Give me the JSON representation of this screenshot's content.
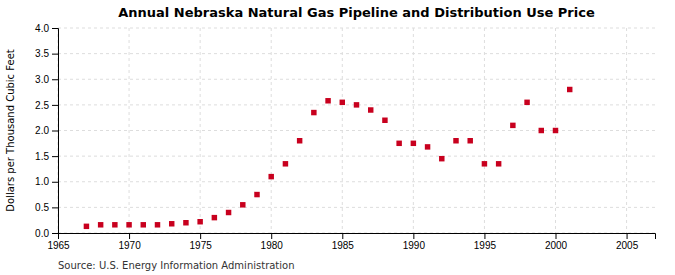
{
  "chart_data": {
    "type": "scatter",
    "title": "Annual Nebraska Natural Gas Pipeline and Distribution Use Price",
    "ylabel": "Dollars per Thousand Cubic Feet",
    "annotations": [
      "Source: U.S. Energy Information Administration"
    ],
    "x": [
      1967,
      1968,
      1969,
      1970,
      1971,
      1972,
      1973,
      1974,
      1975,
      1976,
      1977,
      1978,
      1979,
      1980,
      1981,
      1982,
      1983,
      1984,
      1985,
      1986,
      1987,
      1988,
      1989,
      1990,
      1991,
      1992,
      1993,
      1994,
      1995,
      1996,
      1997,
      1998,
      1999,
      2000,
      2001
    ],
    "values": [
      0.13,
      0.16,
      0.16,
      0.16,
      0.16,
      0.16,
      0.18,
      0.2,
      0.22,
      0.3,
      0.4,
      0.55,
      0.75,
      1.1,
      1.35,
      1.8,
      2.35,
      2.58,
      2.55,
      2.5,
      2.4,
      2.2,
      1.75,
      1.75,
      1.68,
      1.45,
      1.8,
      1.8,
      1.35,
      1.35,
      2.1,
      2.55,
      2.0,
      2.0,
      2.8
    ],
    "color": "#c8001e",
    "marker": "square",
    "xlim": [
      1965,
      2007
    ],
    "ylim": [
      0.0,
      4.0
    ],
    "xticks": [
      1965,
      1970,
      1975,
      1980,
      1985,
      1990,
      1995,
      2000,
      2005
    ],
    "yticks": [
      {
        "value": 0,
        "label": "0.0"
      },
      0.5,
      {
        "value": 1,
        "label": "1.0"
      },
      1.5,
      {
        "value": 2,
        "label": "2.0"
      },
      2.5,
      {
        "value": 3,
        "label": "3.0"
      },
      3.5,
      {
        "value": 4,
        "label": "4.0"
      }
    ],
    "grid": true
  }
}
